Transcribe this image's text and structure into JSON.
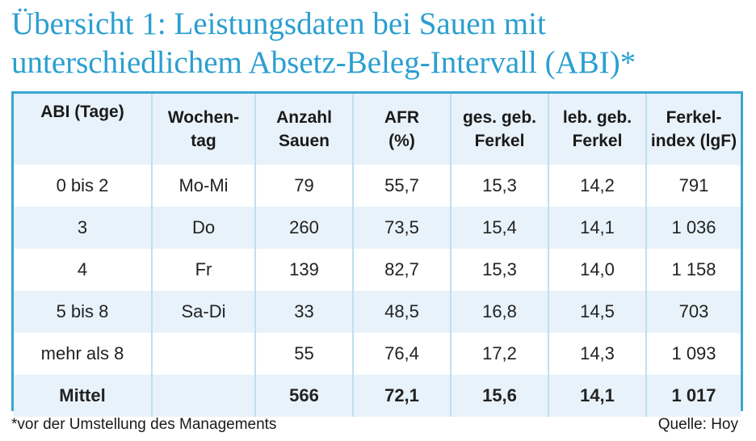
{
  "title_line1": "Übersicht 1: Leistungsdaten bei Sauen mit",
  "title_line2": "unterschiedlichem Absetz-Beleg-Intervall (ABI)*",
  "table": {
    "headers": [
      [
        "ABI (Tage)",
        ""
      ],
      [
        "Wochen-",
        "tag"
      ],
      [
        "Anzahl",
        "Sauen"
      ],
      [
        "AFR",
        "(%)"
      ],
      [
        "ges. geb.",
        "Ferkel"
      ],
      [
        "leb. geb.",
        "Ferkel"
      ],
      [
        "Ferkel-",
        "index (lgF)"
      ]
    ],
    "rows": [
      [
        "0 bis 2",
        "Mo-Mi",
        "79",
        "55,7",
        "15,3",
        "14,2",
        "791"
      ],
      [
        "3",
        "Do",
        "260",
        "73,5",
        "15,4",
        "14,1",
        "1 036"
      ],
      [
        "4",
        "Fr",
        "139",
        "82,7",
        "15,3",
        "14,0",
        "1 158"
      ],
      [
        "5 bis 8",
        "Sa-Di",
        "33",
        "48,5",
        "16,8",
        "14,5",
        "703"
      ],
      [
        "mehr als 8",
        "",
        "55",
        "76,4",
        "17,2",
        "14,3",
        "1 093"
      ]
    ],
    "total": [
      "Mittel",
      "",
      "566",
      "72,1",
      "15,6",
      "14,1",
      "1 017"
    ]
  },
  "footnote": "*vor der Umstellung des Managements",
  "source": "Quelle: Hoy",
  "colors": {
    "title": "#2a9fd0",
    "border": "#3aa5d2",
    "row_shade": "#e8f2fa",
    "grid": "#bfe0f0"
  }
}
